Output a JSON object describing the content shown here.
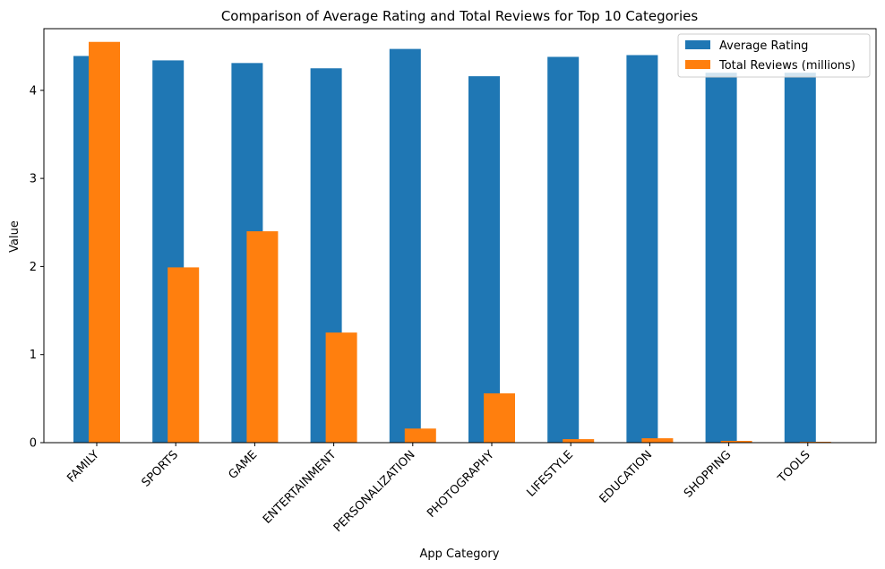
{
  "chart_data": {
    "type": "bar",
    "title": "Comparison of Average Rating and Total Reviews for Top 10 Categories",
    "xlabel": "App Category",
    "ylabel": "Value",
    "ylim": [
      0,
      4.7
    ],
    "yticks": [
      0,
      1,
      2,
      3,
      4
    ],
    "grid": false,
    "legend_position": "top-right",
    "categories": [
      "FAMILY",
      "SPORTS",
      "GAME",
      "ENTERTAINMENT",
      "PERSONALIZATION",
      "PHOTOGRAPHY",
      "LIFESTYLE",
      "EDUCATION",
      "SHOPPING",
      "TOOLS"
    ],
    "series": [
      {
        "name": "Average Rating",
        "color": "#1f77b4",
        "values": [
          4.39,
          4.34,
          4.31,
          4.25,
          4.47,
          4.16,
          4.38,
          4.4,
          4.2,
          4.2
        ]
      },
      {
        "name": "Total Reviews (millions)",
        "color": "#ff7f0e",
        "values": [
          4.55,
          1.99,
          2.4,
          1.25,
          0.16,
          0.56,
          0.04,
          0.05,
          0.02,
          0.01
        ]
      }
    ]
  }
}
